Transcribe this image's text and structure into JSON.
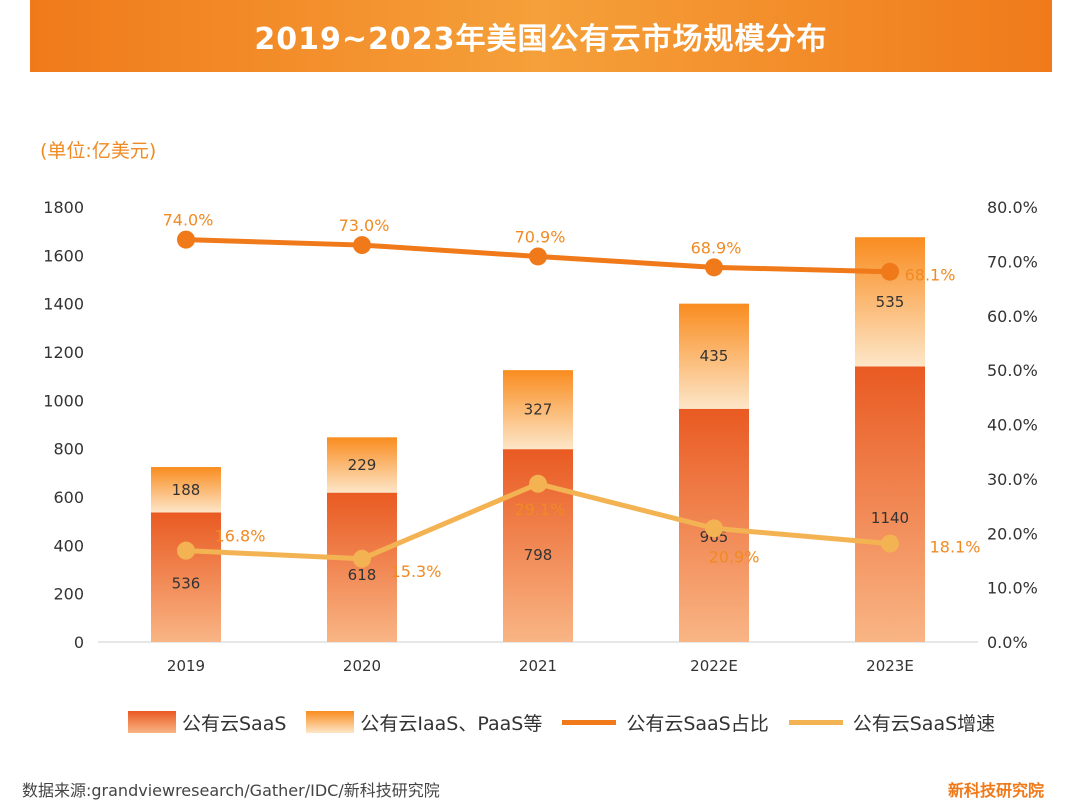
{
  "header": {
    "title": "2019~2023年美国公有云市场规模分布"
  },
  "unit_label": "(单位:亿美元)",
  "source_text": "数据来源:grandviewresearch/Gather/IDC/新科技研究院",
  "brand_text": "新科技研究院",
  "colors": {
    "saas_dark": "#e95a22",
    "saas_light": "#f9b585",
    "iaas_dark": "#f98c1f",
    "iaas_light": "#fde6c8",
    "share_line": "#f07a1a",
    "growth_line": "#f4b352",
    "axis_text": "#333333",
    "label_orange": "#f08a23"
  },
  "chart_data": {
    "type": "bar",
    "stacked": true,
    "title": "2019~2023年美国公有云市场规模分布",
    "categories": [
      "2019",
      "2020",
      "2021",
      "2022E",
      "2023E"
    ],
    "ylim": [
      0,
      1800
    ],
    "yticks": [
      "0",
      "200",
      "400",
      "600",
      "800",
      "1000",
      "1200",
      "1400",
      "1600",
      "1800"
    ],
    "y2lim": [
      0,
      80
    ],
    "y2ticks": [
      "0.0%",
      "10.0%",
      "20.0%",
      "30.0%",
      "40.0%",
      "50.0%",
      "60.0%",
      "70.0%",
      "80.0%"
    ],
    "series": [
      {
        "name": "公有云SaaS",
        "kind": "bar",
        "values": [
          536,
          618,
          798,
          965,
          1140
        ],
        "labels": [
          "536",
          "618",
          "798",
          "965",
          "1140"
        ]
      },
      {
        "name": "公有云IaaS、PaaS等",
        "kind": "bar",
        "values": [
          188,
          229,
          327,
          435,
          535
        ],
        "labels": [
          "188",
          "229",
          "327",
          "435",
          "535"
        ]
      },
      {
        "name": "公有云SaaS占比",
        "kind": "line",
        "axis": "right",
        "values": [
          74.0,
          73.0,
          70.9,
          68.9,
          68.1
        ],
        "labels": [
          "74.0%",
          "73.0%",
          "70.9%",
          "68.9%",
          "68.1%"
        ]
      },
      {
        "name": "公有云SaaS增速",
        "kind": "line",
        "axis": "right",
        "values": [
          16.8,
          15.3,
          29.1,
          20.9,
          18.1
        ],
        "labels": [
          "16.8%",
          "15.3%",
          "29.1%",
          "20.9%",
          "18.1%"
        ]
      }
    ],
    "grid": false,
    "legend": "bottom"
  }
}
